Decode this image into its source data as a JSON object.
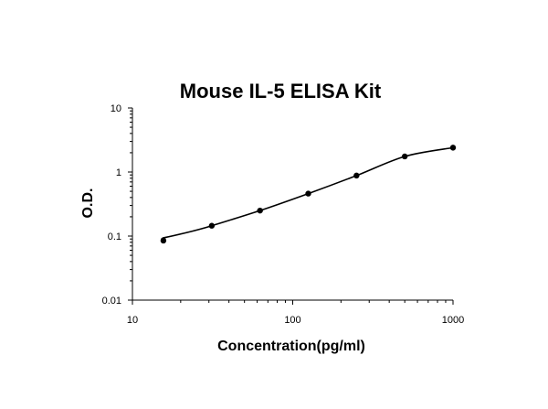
{
  "chart_data": {
    "type": "scatter",
    "title": "Mouse IL-5 ELISA Kit",
    "xlabel": "Concentration(pg/ml)",
    "ylabel": "O.D.",
    "x_scale": "log",
    "y_scale": "log",
    "xlim": [
      10,
      1000
    ],
    "ylim": [
      0.01,
      10
    ],
    "x_ticks": [
      10,
      100,
      1000
    ],
    "x_tick_labels": [
      "10",
      "100",
      "1000"
    ],
    "y_ticks": [
      0.01,
      0.1,
      1,
      10
    ],
    "y_tick_labels": [
      "0.01",
      "0.1",
      "1",
      "10"
    ],
    "grid": false,
    "legend": "none",
    "series": [
      {
        "x": [
          15.6,
          31.25,
          62.5,
          125,
          250,
          500,
          1000
        ],
        "y": [
          0.085,
          0.145,
          0.25,
          0.46,
          0.88,
          1.75,
          2.4
        ],
        "marker": "circle",
        "fit_curve": true,
        "color": "#000000"
      }
    ]
  }
}
